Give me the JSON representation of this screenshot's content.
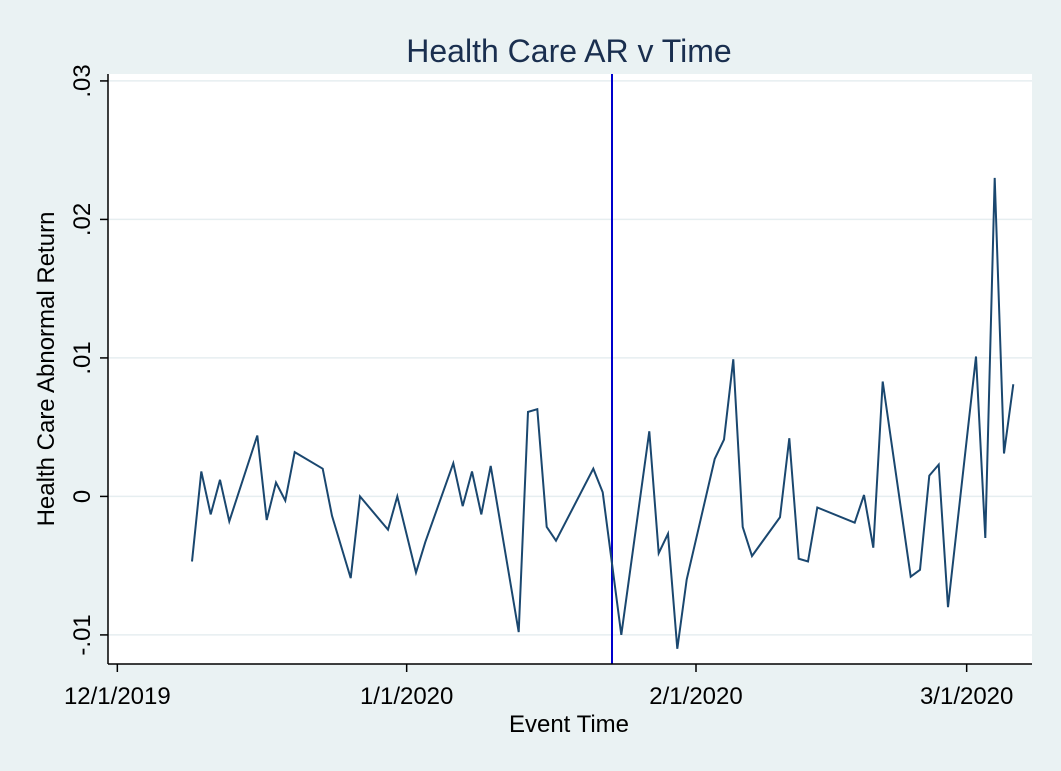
{
  "chart_data": {
    "type": "line",
    "title": "Health Care AR v Time",
    "xlabel": "Event Time",
    "ylabel": "Health Care Abnormal Return",
    "x_ticks": [
      {
        "date": "2019-12-01",
        "label": "12/1/2019"
      },
      {
        "date": "2020-01-01",
        "label": "1/1/2020"
      },
      {
        "date": "2020-02-01",
        "label": "2/1/2020"
      },
      {
        "date": "2020-03-01",
        "label": "3/1/2020"
      }
    ],
    "y_ticks": [
      {
        "value": -0.01,
        "label": "-.01"
      },
      {
        "value": 0,
        "label": "0"
      },
      {
        "value": 0.01,
        "label": ".01"
      },
      {
        "value": 0.02,
        "label": ".02"
      },
      {
        "value": 0.03,
        "label": ".03"
      }
    ],
    "xlim": [
      "2019-11-30",
      "2020-03-08"
    ],
    "ylim": [
      -0.0121,
      0.0305
    ],
    "grid": true,
    "line_color": "#1a476f",
    "event_line": {
      "date": "2020-01-23",
      "color": "#0000cc"
    },
    "series": [
      {
        "points": [
          [
            "2019-12-09",
            -0.0047
          ],
          [
            "2019-12-10",
            0.0018
          ],
          [
            "2019-12-11",
            -0.0013
          ],
          [
            "2019-12-12",
            0.0012
          ],
          [
            "2019-12-13",
            -0.0018
          ],
          [
            "2019-12-16",
            0.0044
          ],
          [
            "2019-12-17",
            -0.0017
          ],
          [
            "2019-12-18",
            0.001
          ],
          [
            "2019-12-19",
            -0.0003
          ],
          [
            "2019-12-20",
            0.0032
          ],
          [
            "2019-12-23",
            0.002
          ],
          [
            "2019-12-24",
            -0.0014
          ],
          [
            "2019-12-26",
            -0.0059
          ],
          [
            "2019-12-27",
            0.0
          ],
          [
            "2019-12-30",
            -0.0024
          ],
          [
            "2019-12-31",
            0.0
          ],
          [
            "2020-01-02",
            -0.0055
          ],
          [
            "2020-01-03",
            -0.0033
          ],
          [
            "2020-01-06",
            0.0024
          ],
          [
            "2020-01-07",
            -0.0007
          ],
          [
            "2020-01-08",
            0.0018
          ],
          [
            "2020-01-09",
            -0.0013
          ],
          [
            "2020-01-10",
            0.0022
          ],
          [
            "2020-01-13",
            -0.0098
          ],
          [
            "2020-01-14",
            0.0061
          ],
          [
            "2020-01-15",
            0.0063
          ],
          [
            "2020-01-16",
            -0.0022
          ],
          [
            "2020-01-17",
            -0.0032
          ],
          [
            "2020-01-21",
            0.002
          ],
          [
            "2020-01-22",
            0.0003
          ],
          [
            "2020-01-24",
            -0.01
          ],
          [
            "2020-01-27",
            0.0047
          ],
          [
            "2020-01-28",
            -0.0041
          ],
          [
            "2020-01-29",
            -0.0027
          ],
          [
            "2020-01-30",
            -0.011
          ],
          [
            "2020-01-31",
            -0.006
          ],
          [
            "2020-02-03",
            0.0027
          ],
          [
            "2020-02-04",
            0.0041
          ],
          [
            "2020-02-05",
            0.0099
          ],
          [
            "2020-02-06",
            -0.0022
          ],
          [
            "2020-02-07",
            -0.0043
          ],
          [
            "2020-02-10",
            -0.0015
          ],
          [
            "2020-02-11",
            0.0042
          ],
          [
            "2020-02-12",
            -0.0045
          ],
          [
            "2020-02-13",
            -0.0047
          ],
          [
            "2020-02-14",
            -0.0008
          ],
          [
            "2020-02-18",
            -0.0019
          ],
          [
            "2020-02-19",
            0.0001
          ],
          [
            "2020-02-20",
            -0.0037
          ],
          [
            "2020-02-21",
            0.0083
          ],
          [
            "2020-02-24",
            -0.0058
          ],
          [
            "2020-02-25",
            -0.0053
          ],
          [
            "2020-02-26",
            0.0015
          ],
          [
            "2020-02-27",
            0.0023
          ],
          [
            "2020-02-28",
            -0.008
          ],
          [
            "2020-03-02",
            0.0101
          ],
          [
            "2020-03-03",
            -0.003
          ],
          [
            "2020-03-04",
            0.023
          ],
          [
            "2020-03-05",
            0.0031
          ],
          [
            "2020-03-06",
            0.0081
          ]
        ]
      }
    ]
  }
}
